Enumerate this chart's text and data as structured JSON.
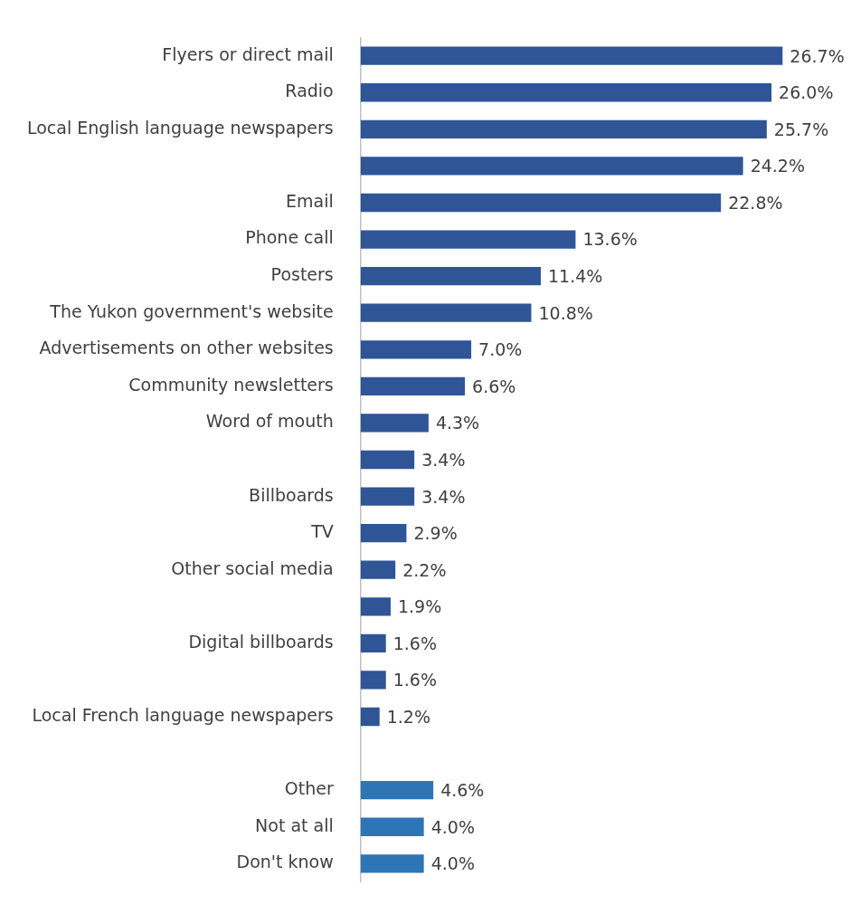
{
  "chart_data": {
    "type": "bar",
    "orientation": "horizontal",
    "categories": [
      "Flyers or direct mail",
      "Radio",
      "Local English language newspapers",
      null,
      "Email",
      "Phone call",
      "Posters",
      "The Yukon government's website",
      "Advertisements on other websites",
      "Community newsletters",
      "Word of mouth",
      null,
      "Billboards",
      "TV",
      "Other social media",
      null,
      "Digital billboards",
      null,
      "Local French language newspapers",
      null,
      "Other",
      "Not at all",
      "Don't know"
    ],
    "values": [
      26.7,
      26.0,
      25.7,
      24.2,
      22.8,
      13.6,
      11.4,
      10.8,
      7.0,
      6.6,
      4.3,
      3.4,
      3.4,
      2.9,
      2.2,
      1.9,
      1.6,
      1.6,
      1.2,
      null,
      4.6,
      4.0,
      4.0
    ],
    "value_labels": [
      "26.7%",
      "26.0%",
      "25.7%",
      "24.2%",
      "22.8%",
      "13.6%",
      "11.4%",
      "10.8%",
      "7.0%",
      "6.6%",
      "4.3%",
      "3.4%",
      "3.4%",
      "2.9%",
      "2.2%",
      "1.9%",
      "1.6%",
      "1.6%",
      "1.2%",
      null,
      "4.6%",
      "4.0%",
      "4.0%"
    ],
    "colors": [
      "#2f5597",
      "#2f5597",
      "#2f5597",
      "#2f5597",
      "#2f5597",
      "#2f5597",
      "#2f5597",
      "#2f5597",
      "#2f5597",
      "#2f5597",
      "#2f5597",
      "#2f5597",
      "#2f5597",
      "#2f5597",
      "#2f5597",
      "#2f5597",
      "#2f5597",
      "#2f5597",
      "#2f5597",
      "#2f5597",
      "#2e75b6",
      "#2e75b6",
      "#2e75b6"
    ],
    "legend": false
  }
}
